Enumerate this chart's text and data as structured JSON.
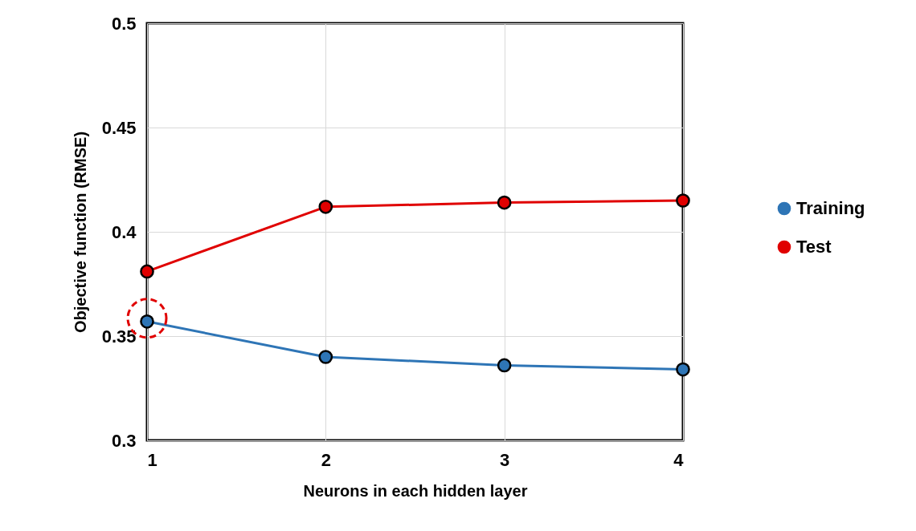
{
  "chart_data": {
    "type": "line",
    "xlabel": "Neurons in each hidden layer",
    "ylabel": "Objective function (RMSE)",
    "x": [
      1,
      2,
      3,
      4
    ],
    "series": [
      {
        "name": "Training",
        "color": "#2e75b6",
        "values": [
          0.357,
          0.34,
          0.336,
          0.334
        ]
      },
      {
        "name": "Test",
        "color": "#e00000",
        "values": [
          0.381,
          0.412,
          0.414,
          0.415
        ]
      }
    ],
    "xlim": [
      1,
      4
    ],
    "xticks": [
      1,
      2,
      3,
      4
    ],
    "ylim": [
      0.3,
      0.5
    ],
    "yticks": [
      0.3,
      0.35,
      0.4,
      0.45,
      0.5
    ],
    "grid": true,
    "legend": "right",
    "marker": "circle",
    "line_style": "solid"
  }
}
